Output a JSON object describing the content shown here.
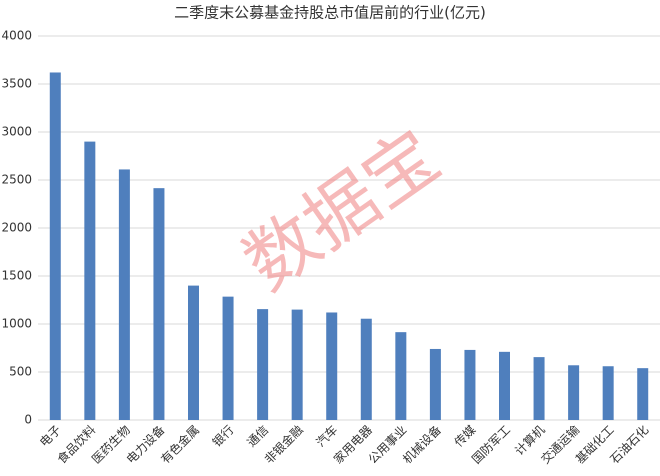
{
  "chart_data": {
    "type": "bar",
    "title": "二季度末公募基金持股总市值居前的行业(亿元)",
    "watermark": "数据宝",
    "categories": [
      "电子",
      "食品饮料",
      "医药生物",
      "电力设备",
      "有色金属",
      "银行",
      "通信",
      "非银金融",
      "汽车",
      "家用电器",
      "公用事业",
      "机械设备",
      "传媒",
      "国防军工",
      "计算机",
      "交通运输",
      "基础化工",
      "石油石化"
    ],
    "values": [
      3620,
      2900,
      2610,
      2415,
      1400,
      1285,
      1155,
      1150,
      1120,
      1055,
      915,
      740,
      730,
      710,
      655,
      570,
      560,
      540
    ],
    "color": "#4f7fbd",
    "ylim": [
      0,
      4000
    ],
    "yticks": [
      0,
      500,
      1000,
      1500,
      2000,
      2500,
      3000,
      3500,
      4000
    ],
    "grid": true
  }
}
